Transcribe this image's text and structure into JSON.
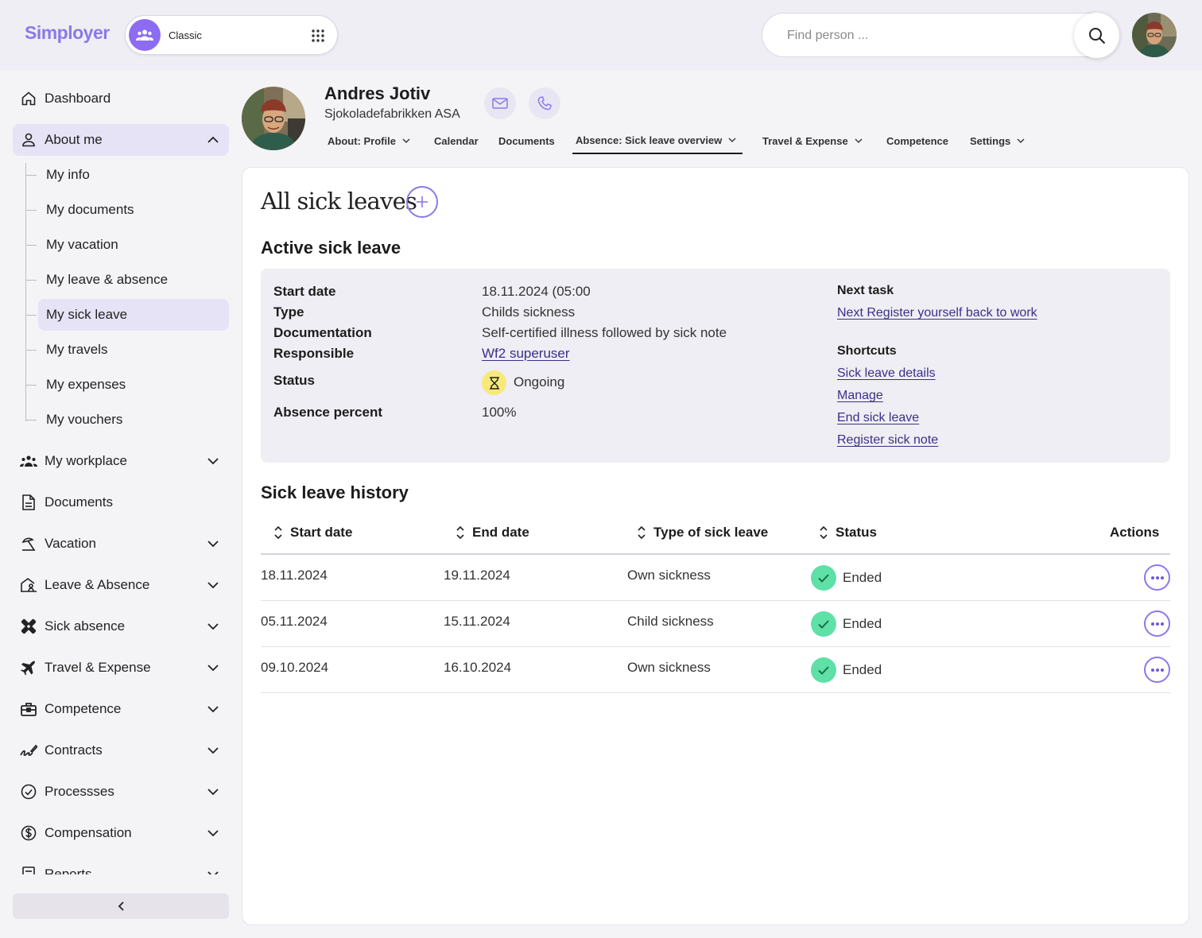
{
  "app": {
    "logo": "Simployer",
    "mode_label": "Classic"
  },
  "search": {
    "placeholder": "Find person ..."
  },
  "colors": {
    "accent": "#8c78e8",
    "active_bg": "#e7e3f7",
    "success": "#5ee0a7",
    "pending": "#f6e97a"
  },
  "sidebar": {
    "items": [
      {
        "label": "Dashboard",
        "icon": "home-icon"
      },
      {
        "label": "About me",
        "icon": "user-icon"
      },
      {
        "label": "My workplace",
        "icon": "team-icon"
      },
      {
        "label": "Documents",
        "icon": "document-icon"
      },
      {
        "label": "Vacation",
        "icon": "beach-icon"
      },
      {
        "label": "Leave & Absence",
        "icon": "leave-icon"
      },
      {
        "label": "Sick absence",
        "icon": "bandage-icon"
      },
      {
        "label": "Travel & Expense",
        "icon": "plane-icon"
      },
      {
        "label": "Competence",
        "icon": "briefcase-icon"
      },
      {
        "label": "Contracts",
        "icon": "signature-icon"
      },
      {
        "label": "Processses",
        "icon": "check-circle-icon"
      },
      {
        "label": "Compensation",
        "icon": "dollar-icon"
      },
      {
        "label": "Reports",
        "icon": "report-icon"
      }
    ],
    "sub_items": [
      {
        "label": "My info"
      },
      {
        "label": "My documents"
      },
      {
        "label": "My vacation"
      },
      {
        "label": "My leave & absence"
      },
      {
        "label": "My sick leave"
      },
      {
        "label": "My travels"
      },
      {
        "label": "My expenses"
      },
      {
        "label": "My vouchers"
      }
    ]
  },
  "person": {
    "name": "Andres Jotiv",
    "company": "Sjokoladefabrikken ASA"
  },
  "tabs": [
    {
      "label": "About: Profile"
    },
    {
      "label": "Calendar"
    },
    {
      "label": "Documents"
    },
    {
      "label": "Absence: Sick leave overview"
    },
    {
      "label": "Travel & Expense"
    },
    {
      "label": "Competence"
    },
    {
      "label": "Settings"
    }
  ],
  "main": {
    "title": "All sick leaves",
    "active": {
      "heading": "Active sick leave",
      "start_date_label": "Start date",
      "start_date": "18.11.2024 (05:00",
      "type_label": "Type",
      "type": "Childs sickness",
      "documentation_label": "Documentation",
      "documentation": "Self-certified illness followed by sick note",
      "responsible_label": "Responsible",
      "responsible": "Wf2 superuser",
      "status_label": "Status",
      "status": "Ongoing",
      "absence_percent_label": "Absence percent",
      "absence_percent": "100%",
      "next_task_heading": "Next task",
      "next_task_link": "Next Register yourself back to work",
      "shortcuts_heading": "Shortcuts",
      "shortcuts": [
        "Sick leave details",
        "Manage",
        "End sick leave",
        "Register sick note"
      ]
    },
    "history": {
      "heading": "Sick leave history",
      "columns": [
        "Start date",
        "End date",
        "Type of sick leave",
        "Status",
        "Actions"
      ],
      "rows": [
        {
          "start": "18.11.2024",
          "end": "19.11.2024",
          "type": "Own sickness",
          "status": "Ended"
        },
        {
          "start": "05.11.2024",
          "end": "15.11.2024",
          "type": "Child sickness",
          "status": "Ended"
        },
        {
          "start": "09.10.2024",
          "end": "16.10.2024",
          "type": "Own sickness",
          "status": "Ended"
        }
      ]
    }
  }
}
